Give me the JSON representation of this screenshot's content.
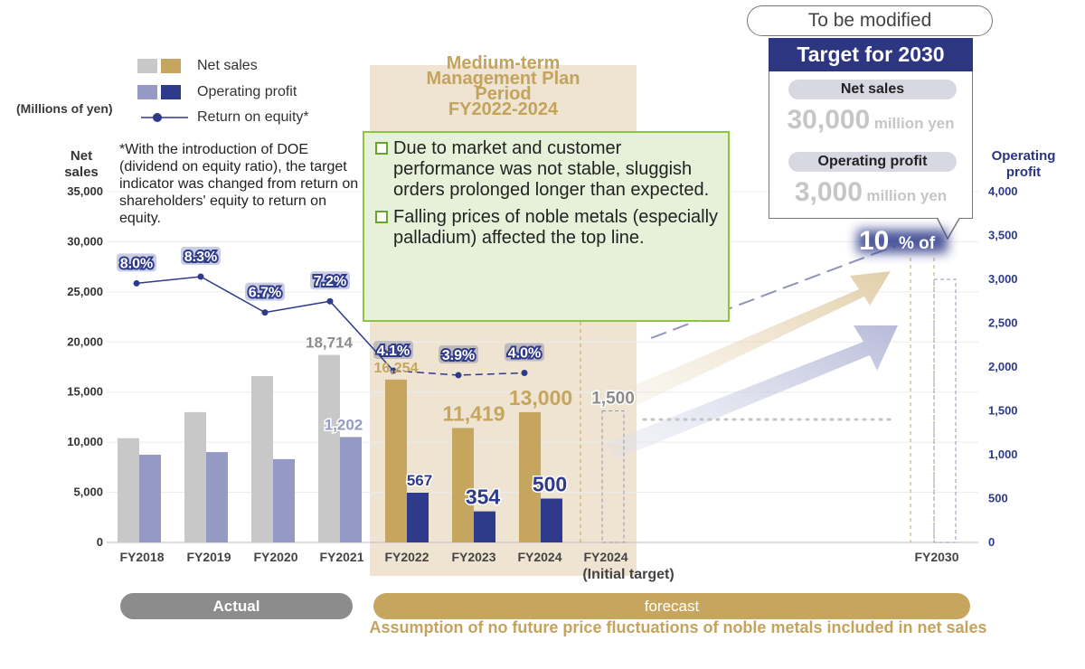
{
  "legend": {
    "net_sales": "Net sales",
    "operating_profit": "Operating profit",
    "roe": "Return on equity*"
  },
  "unit_label": "(Millions of yen)",
  "left_axis_title": [
    "Net",
    "sales"
  ],
  "right_axis_title": [
    "Operating",
    "profit"
  ],
  "note": "*With the introduction of DOE (dividend on equity ratio), the target indicator was changed from return on shareholders' equity to return on equity.",
  "plan_title": [
    "Medium-term",
    "Management Plan",
    "Period",
    "FY2022-2024"
  ],
  "callout": [
    "Due to market and customer performance was not stable, sluggish orders prolonged longer than expected.",
    "Falling prices of noble metals (especially palladium) affected the top line."
  ],
  "target_box": {
    "modified": "To be modified",
    "title": "Target for 2030",
    "net_sales_label": "Net sales",
    "net_sales_value": "30,000",
    "net_sales_unit": "million yen",
    "op_label": "Operating profit",
    "op_value": "3,000",
    "op_unit": "million yen",
    "roe_value": "10",
    "roe_unit": "% of"
  },
  "bands": {
    "actual": "Actual",
    "forecast": "forecast",
    "assumption": "Assumption of no future price fluctuations of noble metals included in net sales"
  },
  "initial_target": "(Initial target)",
  "colors": {
    "grey_bar": "#c8c8c8",
    "lavender_bar": "#959ac4",
    "gold_bar": "#c6a65f",
    "navy_bar": "#2e3a8a",
    "roe_line": "#2e3a8a"
  },
  "chart_data": {
    "type": "bar",
    "categories": [
      "FY2018",
      "FY2019",
      "FY2020",
      "FY2021",
      "FY2022",
      "FY2023",
      "FY2024",
      "FY2024",
      "FY2030"
    ],
    "left_axis": {
      "ticks": [
        "0",
        "5,000",
        "10,000",
        "15,000",
        "20,000",
        "25,000",
        "30,000",
        "35,000"
      ],
      "ylim": [
        0,
        35000
      ]
    },
    "right_axis": {
      "ticks": [
        "0",
        "500",
        "1,000",
        "1,500",
        "2,000",
        "2,500",
        "3,000",
        "3,500",
        "4,000"
      ],
      "ylim": [
        0,
        4000
      ]
    },
    "series": [
      {
        "name": "Net sales",
        "axis": "left",
        "values": [
          10400,
          13000,
          16600,
          18714,
          16254,
          11419,
          13000,
          null,
          30000
        ],
        "labels": [
          "",
          "",
          "",
          "18,714",
          "16,254",
          "11,419",
          "13,000",
          "",
          ""
        ]
      },
      {
        "name": "Operating profit",
        "axis": "right",
        "values": [
          1000,
          1030,
          950,
          1202,
          567,
          354,
          500,
          1500,
          3000
        ],
        "labels": [
          "",
          "",
          "",
          "1,202",
          "567",
          "354",
          "500",
          "1,500",
          ""
        ]
      },
      {
        "name": "Return on equity*",
        "values": [
          8.0,
          8.3,
          6.7,
          7.2,
          4.1,
          3.9,
          4.0,
          null,
          10
        ],
        "labels": [
          "8.0%",
          "8.3%",
          "6.7%",
          "7.2%",
          "4.1%",
          "3.9%",
          "4.0%",
          "",
          ""
        ]
      }
    ]
  }
}
